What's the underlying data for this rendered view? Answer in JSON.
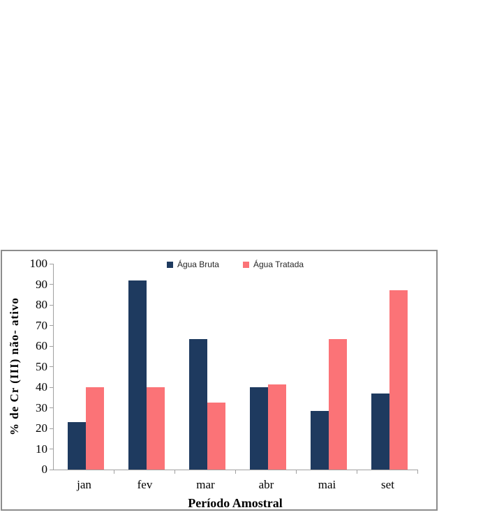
{
  "chart_data": {
    "type": "bar",
    "title": "",
    "xlabel": "Período Amostral",
    "ylabel": "% de Cr (III) não- ativo",
    "categories": [
      "jan",
      "fev",
      "mar",
      "abr",
      "mai",
      "set"
    ],
    "series": [
      {
        "name": "Água Bruta",
        "color": "#1E3A5F",
        "values": [
          23,
          92,
          63.5,
          40,
          28.5,
          37
        ]
      },
      {
        "name": "Água Tratada",
        "color": "#FB7377",
        "values": [
          40,
          40,
          32.5,
          41.5,
          63.5,
          87
        ]
      }
    ],
    "ylim": [
      0,
      100
    ],
    "ytick_step": 10,
    "grid": false,
    "legend_position": "top-center"
  },
  "colors": {
    "axis": "#A0A0A0",
    "border": "#8C8C8C",
    "text": "#000000"
  }
}
